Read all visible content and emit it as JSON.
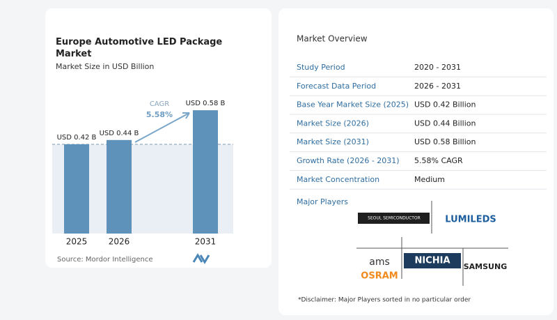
{
  "chart_data": {
    "type": "bar",
    "title": "Europe Automotive LED Package Market",
    "subtitle": "Market Size in USD Billion",
    "categories": [
      "2025",
      "2026",
      "2031"
    ],
    "values": [
      0.42,
      0.44,
      0.58
    ],
    "value_labels": [
      "USD 0.42 B",
      "USD 0.44 B",
      "USD 0.58 B"
    ],
    "color": "#5f92bb",
    "annotation": {
      "label": "CAGR",
      "value": "5.58%"
    },
    "source": "Source: Mordor Intelligence"
  },
  "market_overview": {
    "title": "Market Overview",
    "rows": [
      [
        "Study Period",
        "2020 - 2031"
      ],
      [
        "Forecast Data Period",
        "2026 - 2031"
      ],
      [
        "Base Year Market Size (2025)",
        "USD 0.42 Billion"
      ],
      [
        "Market Size (2026)",
        "USD 0.44 Billion"
      ],
      [
        "Market Size (2031)",
        "USD 0.58 Billion"
      ],
      [
        "Growth Rate (2026 - 2031)",
        "5.58% CAGR"
      ],
      [
        "Market Concentration",
        "Medium"
      ]
    ]
  },
  "major_players": {
    "title": "Major Players",
    "logos": [
      "SEOUL SEMICONDUCTOR",
      "LUMILEDS",
      "ams",
      "OSRAM",
      "NICHIA",
      "SAMSUNG"
    ]
  },
  "disclaimer": "*Disclaimer: Major Players sorted in no particular order"
}
